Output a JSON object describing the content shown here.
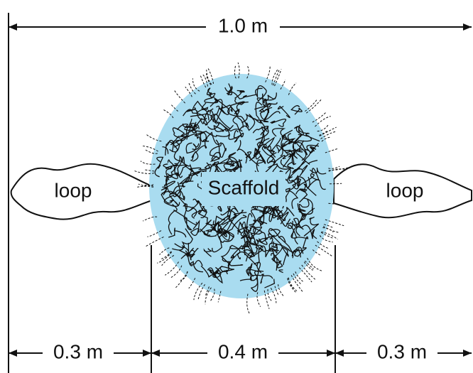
{
  "top_dimension": "1.0 m",
  "scaffold": "Scaffold",
  "loops": [
    "loop",
    "loop"
  ],
  "bottom_dimensions": [
    "0.3 m",
    "0.4 m",
    "0.3 m"
  ]
}
